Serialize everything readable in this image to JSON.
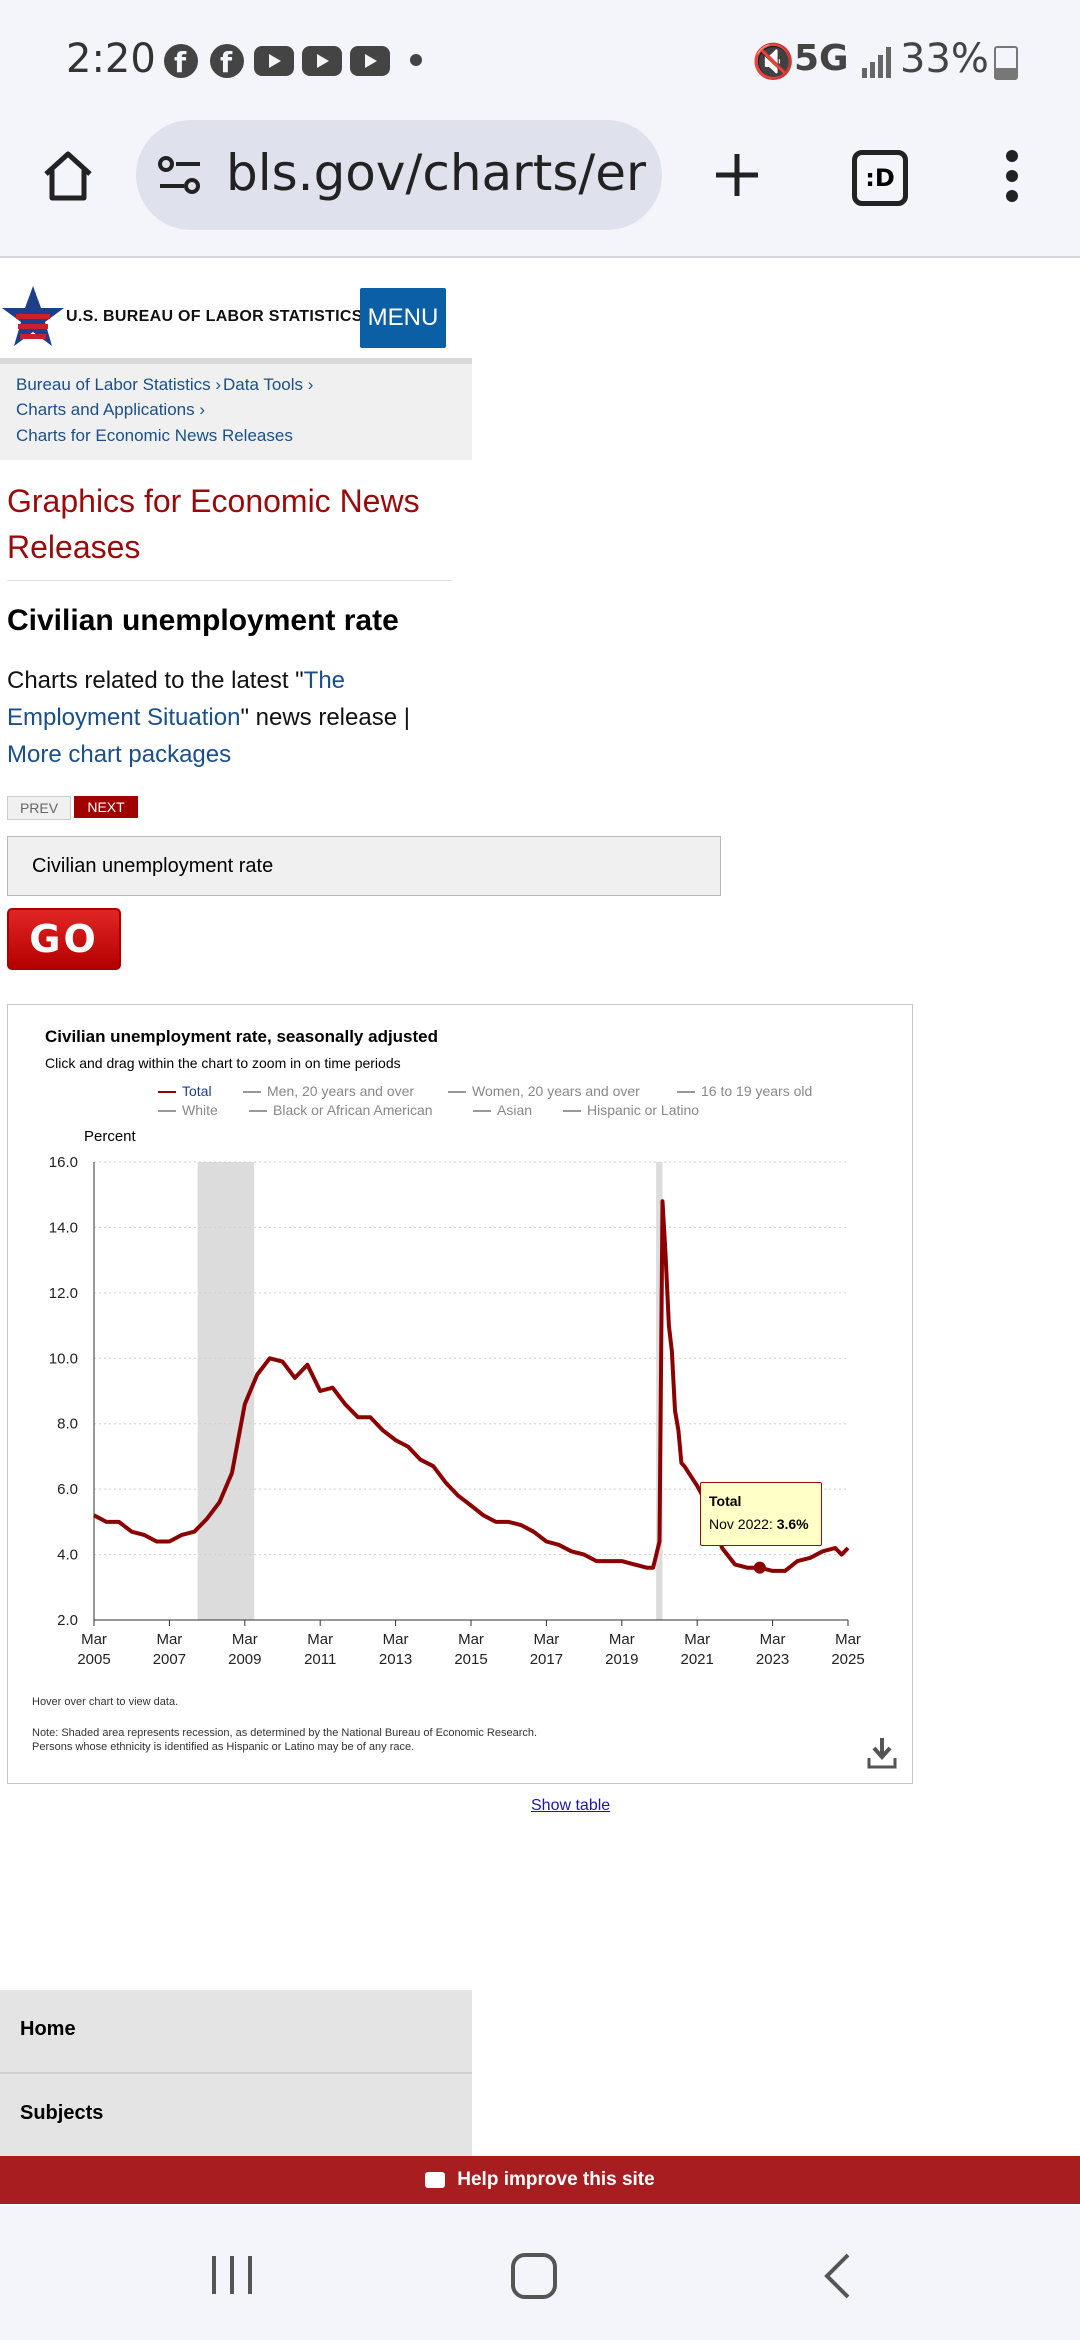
{
  "status_bar": {
    "time": "2:20",
    "network": "5G",
    "battery": "33%"
  },
  "browser": {
    "url": "bls.gov/charts/empl",
    "tabs_label": ":D",
    "icons": [
      "home-icon",
      "site-settings-icon",
      "new-tab-icon",
      "tab-switcher-icon",
      "more-options-icon"
    ]
  },
  "site": {
    "agency": "U.S. BUREAU OF LABOR STATISTICS",
    "menu_label": "MENU",
    "breadcrumb": [
      "Bureau of Labor Statistics",
      "Data Tools",
      "Charts and Applications",
      "Charts for Economic News Releases"
    ]
  },
  "page": {
    "title": "Graphics for Economic News Releases",
    "heading": "Civilian unemployment rate",
    "intro_before": "Charts related to the latest \"",
    "intro_link": "The Employment Situation",
    "intro_after": "\" news release   |",
    "more_link": "More chart packages",
    "prev_label": "PREV",
    "next_label": "NEXT",
    "select_value": "Civilian unemployment rate",
    "go_label": "GO"
  },
  "chart": {
    "title": "Civilian unemployment rate, seasonally adjusted",
    "subtitle": "Click and drag within the chart to zoom in on time periods",
    "legend": [
      {
        "label": "Total",
        "color": "#8b0000",
        "active": true
      },
      {
        "label": "Men, 20 years and over",
        "color": "#999999",
        "active": false
      },
      {
        "label": "Women, 20 years and over",
        "color": "#999999",
        "active": false
      },
      {
        "label": "16 to 19 years old",
        "color": "#999999",
        "active": false
      },
      {
        "label": "White",
        "color": "#999999",
        "active": false
      },
      {
        "label": "Black or African American",
        "color": "#999999",
        "active": false
      },
      {
        "label": "Asian",
        "color": "#999999",
        "active": false
      },
      {
        "label": "Hispanic or Latino",
        "color": "#999999",
        "active": false
      }
    ],
    "ylabel": "Percent",
    "hover_note": "Hover over chart to view data.",
    "note_line1": "Note: Shaded area represents recession, as determined by the National Bureau of Economic Research.",
    "note_line2": "Persons whose ethnicity is identified as Hispanic or Latino may be of any race.",
    "tooltip_series": "Total",
    "tooltip_label": "Nov 2022: ",
    "tooltip_value": "3.6%",
    "show_table": "Show table"
  },
  "chart_data": {
    "type": "line",
    "title": "Civilian unemployment rate, seasonally adjusted",
    "ylabel": "Percent",
    "ylim": [
      2.0,
      16.0
    ],
    "yticks": [
      "16.0",
      "14.0",
      "12.0",
      "10.0",
      "8.0",
      "6.0",
      "4.0",
      "2.0"
    ],
    "xticks": [
      {
        "month": "Mar",
        "year": "2005",
        "t": 2005.17
      },
      {
        "month": "Mar",
        "year": "2007",
        "t": 2007.17
      },
      {
        "month": "Mar",
        "year": "2009",
        "t": 2009.17
      },
      {
        "month": "Mar",
        "year": "2011",
        "t": 2011.17
      },
      {
        "month": "Mar",
        "year": "2013",
        "t": 2013.17
      },
      {
        "month": "Mar",
        "year": "2015",
        "t": 2015.17
      },
      {
        "month": "Mar",
        "year": "2017",
        "t": 2017.17
      },
      {
        "month": "Mar",
        "year": "2019",
        "t": 2019.17
      },
      {
        "month": "Mar",
        "year": "2021",
        "t": 2021.17
      },
      {
        "month": "Mar",
        "year": "2023",
        "t": 2023.17
      },
      {
        "month": "Mar",
        "year": "2025",
        "t": 2025.17
      }
    ],
    "xlim": [
      2005.17,
      2025.17
    ],
    "recessions": [
      [
        2007.92,
        2009.42
      ],
      [
        2020.08,
        2020.25
      ]
    ],
    "grid": true,
    "legend_placement": "top",
    "highlight": {
      "label": "Nov 2022",
      "t": 2022.83,
      "value": 3.6
    },
    "series": [
      {
        "name": "Total",
        "color": "#8b0000",
        "points": [
          [
            2005.17,
            5.2
          ],
          [
            2005.5,
            5.0
          ],
          [
            2005.83,
            5.0
          ],
          [
            2006.17,
            4.7
          ],
          [
            2006.5,
            4.6
          ],
          [
            2006.83,
            4.4
          ],
          [
            2007.17,
            4.4
          ],
          [
            2007.5,
            4.6
          ],
          [
            2007.83,
            4.7
          ],
          [
            2008.17,
            5.1
          ],
          [
            2008.5,
            5.6
          ],
          [
            2008.83,
            6.5
          ],
          [
            2009.17,
            8.6
          ],
          [
            2009.5,
            9.5
          ],
          [
            2009.83,
            10.0
          ],
          [
            2010.17,
            9.9
          ],
          [
            2010.5,
            9.4
          ],
          [
            2010.83,
            9.8
          ],
          [
            2011.17,
            9.0
          ],
          [
            2011.5,
            9.1
          ],
          [
            2011.83,
            8.6
          ],
          [
            2012.17,
            8.2
          ],
          [
            2012.5,
            8.2
          ],
          [
            2012.83,
            7.8
          ],
          [
            2013.17,
            7.5
          ],
          [
            2013.5,
            7.3
          ],
          [
            2013.83,
            6.9
          ],
          [
            2014.17,
            6.7
          ],
          [
            2014.5,
            6.2
          ],
          [
            2014.83,
            5.8
          ],
          [
            2015.17,
            5.5
          ],
          [
            2015.5,
            5.2
          ],
          [
            2015.83,
            5.0
          ],
          [
            2016.17,
            5.0
          ],
          [
            2016.5,
            4.9
          ],
          [
            2016.83,
            4.7
          ],
          [
            2017.17,
            4.4
          ],
          [
            2017.5,
            4.3
          ],
          [
            2017.83,
            4.1
          ],
          [
            2018.17,
            4.0
          ],
          [
            2018.5,
            3.8
          ],
          [
            2018.83,
            3.8
          ],
          [
            2019.17,
            3.8
          ],
          [
            2019.5,
            3.7
          ],
          [
            2019.83,
            3.6
          ],
          [
            2020.0,
            3.6
          ],
          [
            2020.17,
            4.4
          ],
          [
            2020.25,
            14.8
          ],
          [
            2020.33,
            13.2
          ],
          [
            2020.42,
            11.0
          ],
          [
            2020.5,
            10.2
          ],
          [
            2020.58,
            8.4
          ],
          [
            2020.67,
            7.8
          ],
          [
            2020.75,
            6.8
          ],
          [
            2020.83,
            6.7
          ],
          [
            2021.0,
            6.4
          ],
          [
            2021.17,
            6.1
          ],
          [
            2021.5,
            5.4
          ],
          [
            2021.83,
            4.2
          ],
          [
            2022.17,
            3.7
          ],
          [
            2022.5,
            3.6
          ],
          [
            2022.83,
            3.6
          ],
          [
            2023.17,
            3.5
          ],
          [
            2023.5,
            3.5
          ],
          [
            2023.83,
            3.8
          ],
          [
            2024.17,
            3.9
          ],
          [
            2024.5,
            4.1
          ],
          [
            2024.83,
            4.2
          ],
          [
            2025.0,
            4.0
          ],
          [
            2025.17,
            4.2
          ]
        ]
      }
    ]
  },
  "nav": {
    "home": "Home",
    "subjects": "Subjects",
    "feedback": "Help improve this site"
  }
}
